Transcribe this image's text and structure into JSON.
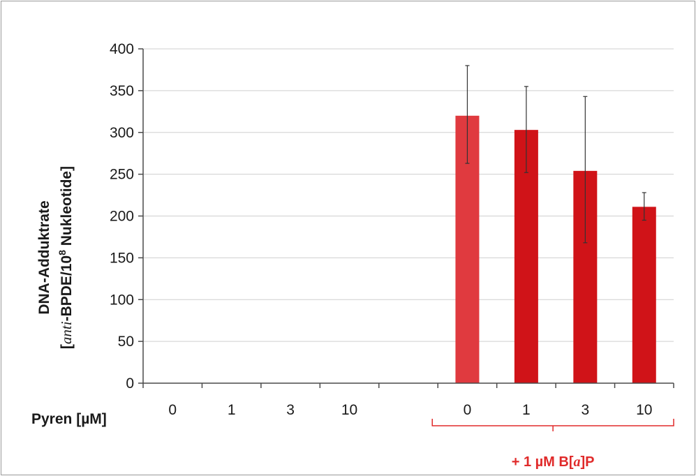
{
  "chart_data": {
    "type": "bar",
    "ylabel_line1": "DNA-Addukt­rate",
    "ylabel_line2_prefix": "[",
    "ylabel_line2_italic": "anti",
    "ylabel_line2_mid": "-BPDE/10",
    "ylabel_line2_sup": "8",
    "ylabel_line2_suffix": " Nukleotide]",
    "ylim": [
      0,
      400
    ],
    "yticks": [
      "0",
      "50",
      "100",
      "150",
      "200",
      "250",
      "300",
      "350",
      "400"
    ],
    "ytick_values": [
      0,
      50,
      100,
      150,
      200,
      250,
      300,
      350,
      400
    ],
    "x_row_label": "Pyren [µM]",
    "categories": [
      "0",
      "1",
      "3",
      "10",
      "",
      "0",
      "1",
      "3",
      "10"
    ],
    "values": [
      0,
      0,
      0,
      0,
      null,
      320,
      303,
      254,
      211
    ],
    "error_high": [
      null,
      null,
      null,
      null,
      null,
      380,
      355,
      343,
      228
    ],
    "error_low": [
      null,
      null,
      null,
      null,
      null,
      263,
      252,
      168,
      195
    ],
    "bar_colors": [
      "#d31f25",
      "#d31f25",
      "#d31f25",
      "#d31f25",
      null,
      "#e03a3f",
      "#d01318",
      "#d01318",
      "#d01318"
    ],
    "group_label_prefix": "+ 1 µM B[",
    "group_label_italic": "a",
    "group_label_suffix": "]P",
    "group_color": "#e02a2a",
    "grid": true
  }
}
